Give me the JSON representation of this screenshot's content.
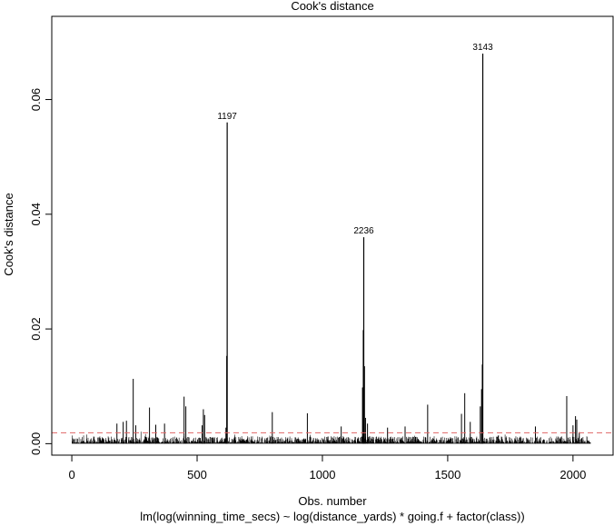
{
  "chart_data": {
    "type": "bar",
    "title": "Cook's distance",
    "xlabel": "Obs. number",
    "ylabel": "Cook's distance",
    "subtitle": "lm(log(winning_time_secs) ~ log(distance_yards) * going.f + factor(class))",
    "xlim": [
      -80,
      2160
    ],
    "ylim": [
      -0.002,
      0.0745
    ],
    "x_ticks": [
      0,
      500,
      1000,
      1500,
      2000
    ],
    "x_tick_labels": [
      "0",
      "500",
      "1000",
      "1500",
      "2000"
    ],
    "y_ticks": [
      0,
      0.02,
      0.04,
      0.06
    ],
    "y_tick_labels": [
      "0.00",
      "0.02",
      "0.04",
      "0.06"
    ],
    "n_obs": 2070,
    "threshold": 0.0019,
    "threshold_color": "#e06666",
    "bar_color": "#000000",
    "labeled_points": [
      {
        "x": 620,
        "y": 0.056,
        "label": "1197"
      },
      {
        "x": 1165,
        "y": 0.036,
        "label": "2236"
      },
      {
        "x": 1640,
        "y": 0.068,
        "label": "3143"
      }
    ],
    "notable_values": [
      {
        "x": 180,
        "y": 0.0035
      },
      {
        "x": 205,
        "y": 0.0038
      },
      {
        "x": 218,
        "y": 0.004
      },
      {
        "x": 245,
        "y": 0.0113
      },
      {
        "x": 255,
        "y": 0.0032
      },
      {
        "x": 310,
        "y": 0.0063
      },
      {
        "x": 335,
        "y": 0.0033
      },
      {
        "x": 370,
        "y": 0.0035
      },
      {
        "x": 448,
        "y": 0.0082
      },
      {
        "x": 455,
        "y": 0.0065
      },
      {
        "x": 520,
        "y": 0.0032
      },
      {
        "x": 525,
        "y": 0.006
      },
      {
        "x": 530,
        "y": 0.005
      },
      {
        "x": 615,
        "y": 0.0028
      },
      {
        "x": 618,
        "y": 0.0153
      },
      {
        "x": 800,
        "y": 0.0055
      },
      {
        "x": 940,
        "y": 0.0053
      },
      {
        "x": 1075,
        "y": 0.003
      },
      {
        "x": 1160,
        "y": 0.0098
      },
      {
        "x": 1163,
        "y": 0.0198
      },
      {
        "x": 1168,
        "y": 0.0135
      },
      {
        "x": 1172,
        "y": 0.0045
      },
      {
        "x": 1180,
        "y": 0.0035
      },
      {
        "x": 1260,
        "y": 0.0028
      },
      {
        "x": 1330,
        "y": 0.003
      },
      {
        "x": 1420,
        "y": 0.0068
      },
      {
        "x": 1555,
        "y": 0.0052
      },
      {
        "x": 1568,
        "y": 0.0088
      },
      {
        "x": 1590,
        "y": 0.0038
      },
      {
        "x": 1630,
        "y": 0.0065
      },
      {
        "x": 1635,
        "y": 0.0095
      },
      {
        "x": 1638,
        "y": 0.0138
      },
      {
        "x": 1850,
        "y": 0.003
      },
      {
        "x": 1975,
        "y": 0.0083
      },
      {
        "x": 2000,
        "y": 0.0032
      },
      {
        "x": 2010,
        "y": 0.0048
      },
      {
        "x": 2015,
        "y": 0.0042
      },
      {
        "x": 2025,
        "y": 0.002
      }
    ]
  }
}
